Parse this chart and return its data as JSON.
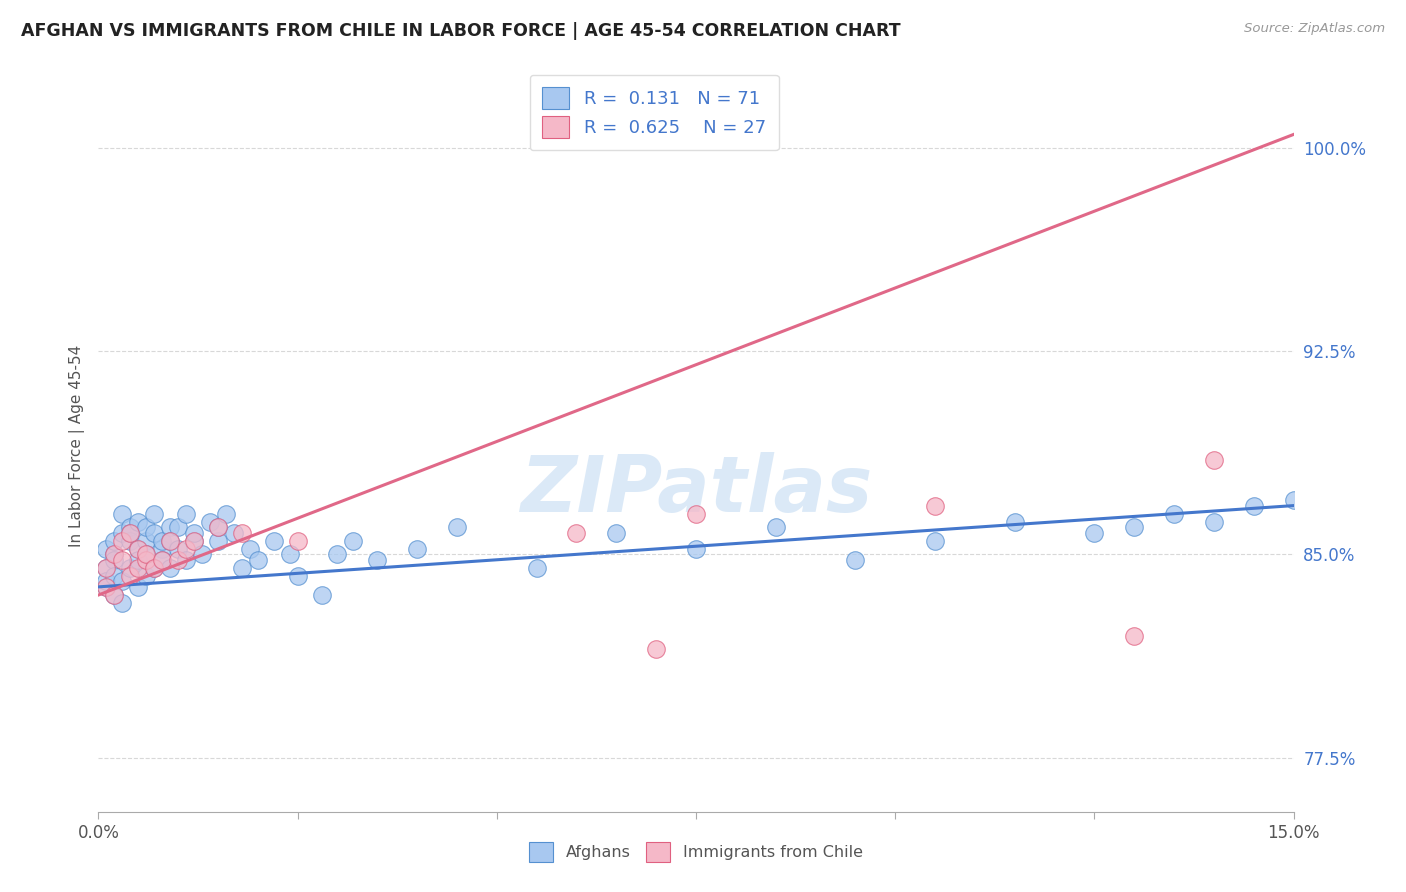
{
  "title": "AFGHAN VS IMMIGRANTS FROM CHILE IN LABOR FORCE | AGE 45-54 CORRELATION CHART",
  "source": "Source: ZipAtlas.com",
  "ylabel": "In Labor Force | Age 45-54",
  "xmin": 0.0,
  "xmax": 0.15,
  "ymin": 75.5,
  "ymax": 102.5,
  "watermark": "ZIPatlas",
  "legend_r_afghan": "0.131",
  "legend_n_afghan": "71",
  "legend_r_chile": "0.625",
  "legend_n_chile": "27",
  "color_afghan": "#a8c8f0",
  "color_chile": "#f5b8c8",
  "color_edge_afghan": "#5590d0",
  "color_edge_chile": "#e06080",
  "color_line_afghan": "#4477cc",
  "color_line_chile": "#e06888",
  "color_text_blue": "#4477cc",
  "color_ytick": "#4477cc",
  "ytick_positions": [
    77.5,
    85.0,
    92.5,
    100.0
  ],
  "ytick_labels": [
    "77.5%",
    "85.0%",
    "92.5%",
    "100.0%"
  ],
  "grid_color": "#d8d8d8",
  "afghan_x": [
    0.001,
    0.001,
    0.001,
    0.001,
    0.002,
    0.002,
    0.002,
    0.002,
    0.002,
    0.003,
    0.003,
    0.003,
    0.003,
    0.004,
    0.004,
    0.004,
    0.004,
    0.005,
    0.005,
    0.005,
    0.005,
    0.006,
    0.006,
    0.006,
    0.006,
    0.007,
    0.007,
    0.007,
    0.008,
    0.008,
    0.008,
    0.009,
    0.009,
    0.009,
    0.01,
    0.01,
    0.011,
    0.011,
    0.012,
    0.012,
    0.013,
    0.014,
    0.015,
    0.015,
    0.016,
    0.017,
    0.018,
    0.019,
    0.02,
    0.022,
    0.024,
    0.025,
    0.028,
    0.03,
    0.032,
    0.035,
    0.04,
    0.045,
    0.055,
    0.065,
    0.075,
    0.085,
    0.095,
    0.105,
    0.115,
    0.125,
    0.13,
    0.135,
    0.14,
    0.145,
    0.15
  ],
  "afghan_y": [
    84.5,
    85.2,
    83.8,
    84.0,
    85.0,
    84.8,
    83.5,
    85.5,
    84.2,
    85.8,
    86.5,
    84.0,
    83.2,
    86.0,
    85.5,
    84.5,
    85.8,
    85.2,
    84.8,
    86.2,
    83.8,
    85.5,
    86.0,
    84.2,
    85.0,
    85.8,
    84.5,
    86.5,
    85.2,
    84.8,
    85.5,
    86.0,
    84.5,
    85.5,
    85.2,
    86.0,
    86.5,
    84.8,
    85.5,
    85.8,
    85.0,
    86.2,
    85.5,
    86.0,
    86.5,
    85.8,
    84.5,
    85.2,
    84.8,
    85.5,
    85.0,
    84.2,
    83.5,
    85.0,
    85.5,
    84.8,
    85.2,
    86.0,
    84.5,
    85.8,
    85.2,
    86.0,
    84.8,
    85.5,
    86.2,
    85.8,
    86.0,
    86.5,
    86.2,
    86.8,
    87.0
  ],
  "chile_x": [
    0.001,
    0.001,
    0.002,
    0.002,
    0.003,
    0.003,
    0.004,
    0.004,
    0.005,
    0.005,
    0.006,
    0.006,
    0.007,
    0.008,
    0.009,
    0.01,
    0.011,
    0.012,
    0.015,
    0.018,
    0.025,
    0.06,
    0.07,
    0.075,
    0.105,
    0.13,
    0.14
  ],
  "chile_y": [
    84.5,
    83.8,
    85.0,
    83.5,
    84.8,
    85.5,
    84.2,
    85.8,
    84.5,
    85.2,
    84.8,
    85.0,
    84.5,
    84.8,
    85.5,
    84.8,
    85.2,
    85.5,
    86.0,
    85.8,
    85.5,
    85.8,
    81.5,
    86.5,
    86.8,
    82.0,
    88.5
  ],
  "line_afghan_y0": 83.8,
  "line_afghan_y1": 86.8,
  "line_chile_y0": 83.5,
  "line_chile_y1": 100.5
}
